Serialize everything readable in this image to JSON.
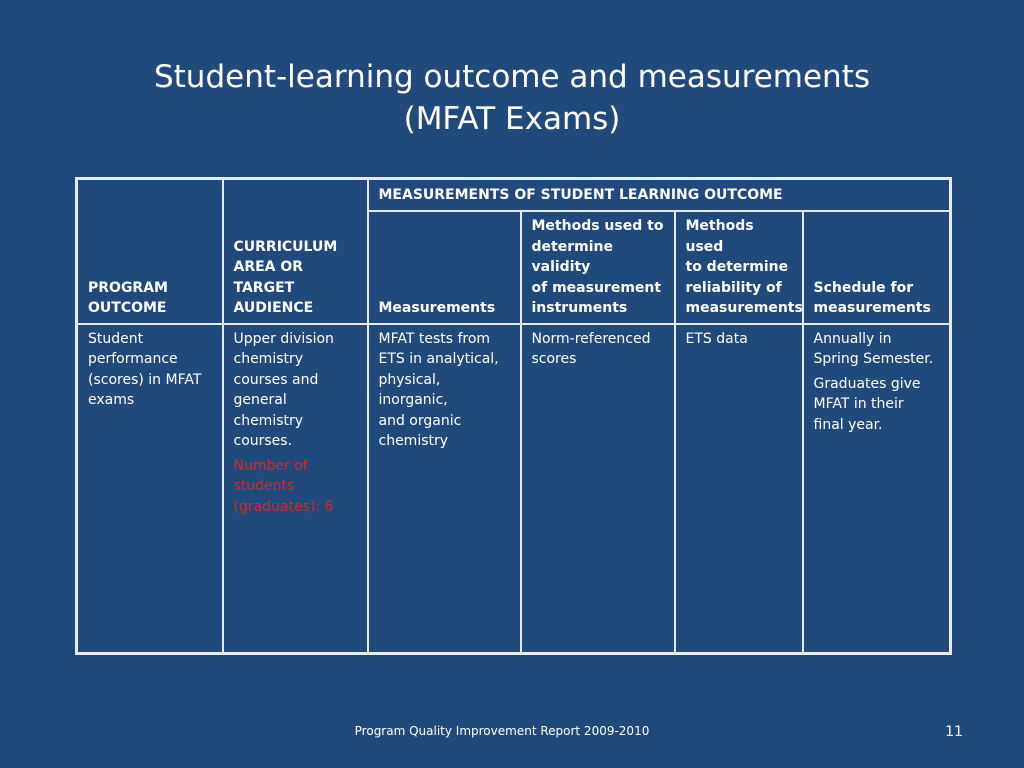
{
  "slide": {
    "title_line1": "Student-learning outcome and measurements",
    "title_line2": "(MFAT Exams)"
  },
  "table": {
    "group_header": "MEASUREMENTS OF STUDENT LEARNING OUTCOME",
    "headers": {
      "program_outcome": [
        "PROGRAM",
        "OUTCOME"
      ],
      "curriculum": [
        "CURRICULUM",
        "AREA OR TARGET",
        "AUDIENCE"
      ],
      "measurements": [
        "Measurements"
      ],
      "validity": [
        "Methods used to",
        "determine validity",
        "of measurement",
        "instruments"
      ],
      "reliability": [
        "Methods used",
        "to determine",
        "reliability of",
        "measurements"
      ],
      "schedule": [
        "Schedule for",
        "measurements"
      ]
    },
    "row": {
      "program_outcome": [
        "Student",
        "performance",
        "(scores) in MFAT",
        "exams"
      ],
      "curriculum": [
        "Upper division",
        "chemistry",
        "courses and",
        "general chemistry",
        "courses."
      ],
      "curriculum_note": [
        "Number of",
        "students",
        "(graduates): 6"
      ],
      "measurements": [
        "MFAT tests from",
        "ETS in  analytical,",
        "physical, inorganic,",
        "and organic",
        "chemistry"
      ],
      "validity": [
        "Norm-referenced",
        "scores"
      ],
      "reliability": [
        "ETS data"
      ],
      "schedule_p1": [
        "Annually  in",
        "Spring Semester."
      ],
      "schedule_p2": [
        "Graduates give",
        "MFAT in their",
        "final year."
      ]
    }
  },
  "footer": {
    "text": "Program Quality Improvement Report 2009-2010",
    "page_number": "11"
  },
  "colors": {
    "background": "#214a7c",
    "note_red": "#d42a2a",
    "border": "#e8ecf2"
  }
}
